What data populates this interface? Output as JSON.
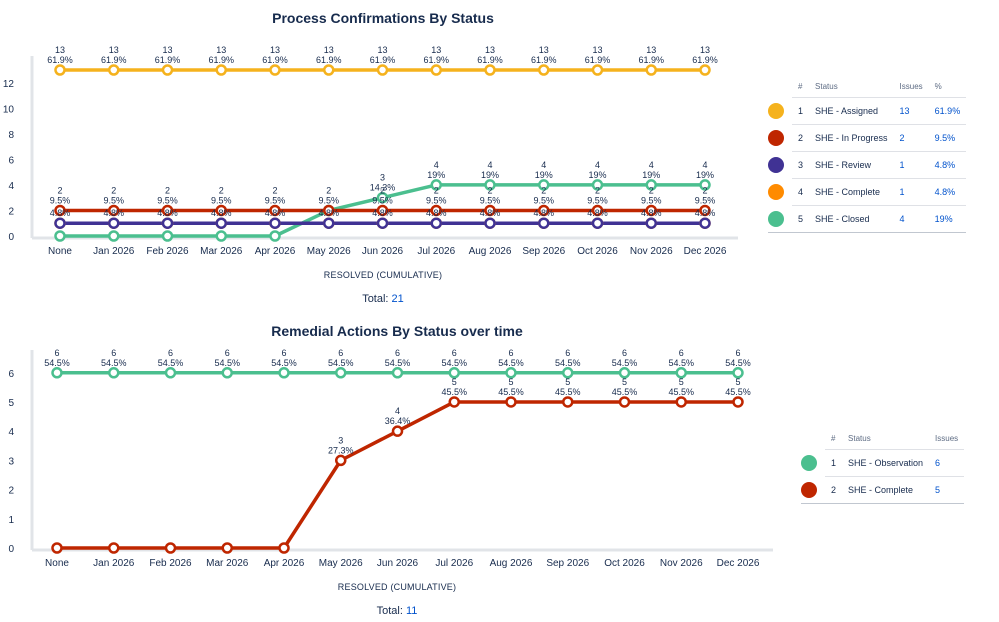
{
  "chart_data": [
    {
      "type": "line",
      "title": "Process Confirmations By Status",
      "xlabel": "RESOLVED (CUMULATIVE)",
      "total_label": "Total:",
      "total_value": "21",
      "categories": [
        "None",
        "Jan 2026",
        "Feb 2026",
        "Mar 2026",
        "Apr 2026",
        "May 2026",
        "Jun 2026",
        "Jul 2026",
        "Aug 2026",
        "Sep 2026",
        "Oct 2026",
        "Nov 2026",
        "Dec 2026"
      ],
      "y_ticks": [
        0,
        2,
        4,
        6,
        8,
        10,
        12
      ],
      "ylim": [
        0,
        13
      ],
      "grid": false,
      "series": [
        {
          "name": "SHE - Assigned",
          "color": "#f5b21d",
          "values": [
            13,
            13,
            13,
            13,
            13,
            13,
            13,
            13,
            13,
            13,
            13,
            13,
            13
          ],
          "labels": [
            "13\n61.9%",
            "13\n61.9%",
            "13\n61.9%",
            "13\n61.9%",
            "13\n61.9%",
            "13\n61.9%",
            "13\n61.9%",
            "13\n61.9%",
            "13\n61.9%",
            "13\n61.9%",
            "13\n61.9%",
            "13\n61.9%",
            "13\n61.9%"
          ]
        },
        {
          "name": "SHE - In Progress",
          "color": "#bf2600",
          "values": [
            2,
            2,
            2,
            2,
            2,
            2,
            2,
            2,
            2,
            2,
            2,
            2,
            2
          ],
          "labels": [
            "2\n9.5%",
            "2\n9.5%",
            "2\n9.5%",
            "2\n9.5%",
            "2\n9.5%",
            "2\n9.5%",
            "2\n9.5%",
            "2\n9.5%",
            "2\n9.5%",
            "2\n9.5%",
            "2\n9.5%",
            "2\n9.5%",
            "2\n9.5%"
          ]
        },
        {
          "name": "SHE - Review",
          "color": "#403294",
          "values": [
            1,
            1,
            1,
            1,
            1,
            1,
            1,
            1,
            1,
            1,
            1,
            1,
            1
          ],
          "labels": [
            "4.8%",
            "4.8%",
            "4.8%",
            "4.8%",
            "4.8%",
            "4.8%",
            "4.8%",
            "4.8%",
            "4.8%",
            "4.8%",
            "4.8%",
            "4.8%",
            "4.8%"
          ]
        },
        {
          "name": "SHE - Complete",
          "color": "#ff8b00",
          "values": [
            1,
            1,
            1,
            1,
            1,
            1,
            1,
            1,
            1,
            1,
            1,
            1,
            1
          ],
          "labels": [
            "",
            "",
            "",
            "",
            "",
            "",
            "",
            "",
            "",
            "",
            "",
            "",
            ""
          ]
        },
        {
          "name": "SHE - Closed",
          "color": "#4bbf8f",
          "values": [
            0,
            0,
            0,
            0,
            0,
            2,
            3,
            4,
            4,
            4,
            4,
            4,
            4
          ],
          "labels": [
            "",
            "",
            "",
            "",
            "",
            "",
            "3\n14.3%",
            "4\n19%",
            "4\n19%",
            "4\n19%",
            "4\n19%",
            "4\n19%",
            "4\n19%"
          ]
        }
      ],
      "legend": {
        "headers": {
          "num": "#",
          "status": "Status",
          "issues": "Issues",
          "pct": "%"
        },
        "rows": [
          {
            "num": "1",
            "status": "SHE - Assigned",
            "issues": "13",
            "pct": "61.9%",
            "color": "#f5b21d"
          },
          {
            "num": "2",
            "status": "SHE - In Progress",
            "issues": "2",
            "pct": "9.5%",
            "color": "#bf2600"
          },
          {
            "num": "3",
            "status": "SHE - Review",
            "issues": "1",
            "pct": "4.8%",
            "color": "#403294"
          },
          {
            "num": "4",
            "status": "SHE - Complete",
            "issues": "1",
            "pct": "4.8%",
            "color": "#ff8b00"
          },
          {
            "num": "5",
            "status": "SHE - Closed",
            "issues": "4",
            "pct": "19%",
            "color": "#4bbf8f"
          }
        ]
      }
    },
    {
      "type": "line",
      "title": "Remedial Actions By Status over time",
      "xlabel": "RESOLVED (CUMULATIVE)",
      "total_label": "Total:",
      "total_value": "11",
      "categories": [
        "None",
        "Jan 2026",
        "Feb 2026",
        "Mar 2026",
        "Apr 2026",
        "May 2026",
        "Jun 2026",
        "Jul 2026",
        "Aug 2026",
        "Sep 2026",
        "Oct 2026",
        "Nov 2026",
        "Dec 2026"
      ],
      "y_ticks": [
        0,
        1,
        2,
        3,
        4,
        5,
        6
      ],
      "ylim": [
        0,
        6.3
      ],
      "grid": false,
      "series": [
        {
          "name": "SHE - Observation",
          "color": "#4bbf8f",
          "values": [
            6,
            6,
            6,
            6,
            6,
            6,
            6,
            6,
            6,
            6,
            6,
            6,
            6
          ],
          "labels": [
            "6\n54.5%",
            "6\n54.5%",
            "6\n54.5%",
            "6\n54.5%",
            "6\n54.5%",
            "6\n54.5%",
            "6\n54.5%",
            "6\n54.5%",
            "6\n54.5%",
            "6\n54.5%",
            "6\n54.5%",
            "6\n54.5%",
            "6\n54.5%"
          ]
        },
        {
          "name": "SHE - Complete",
          "color": "#bf2600",
          "values": [
            0,
            0,
            0,
            0,
            0,
            3,
            4,
            5,
            5,
            5,
            5,
            5,
            5
          ],
          "labels": [
            "",
            "",
            "",
            "",
            "",
            "3\n27.3%",
            "4\n36.4%",
            "5\n45.5%",
            "5\n45.5%",
            "5\n45.5%",
            "5\n45.5%",
            "5\n45.5%",
            "5\n45.5%"
          ]
        }
      ],
      "legend": {
        "headers": {
          "num": "#",
          "status": "Status",
          "issues": "Issues"
        },
        "rows": [
          {
            "num": "1",
            "status": "SHE - Observation",
            "issues": "6",
            "color": "#4bbf8f"
          },
          {
            "num": "2",
            "status": "SHE - Complete",
            "issues": "5",
            "color": "#bf2600"
          }
        ]
      }
    }
  ]
}
